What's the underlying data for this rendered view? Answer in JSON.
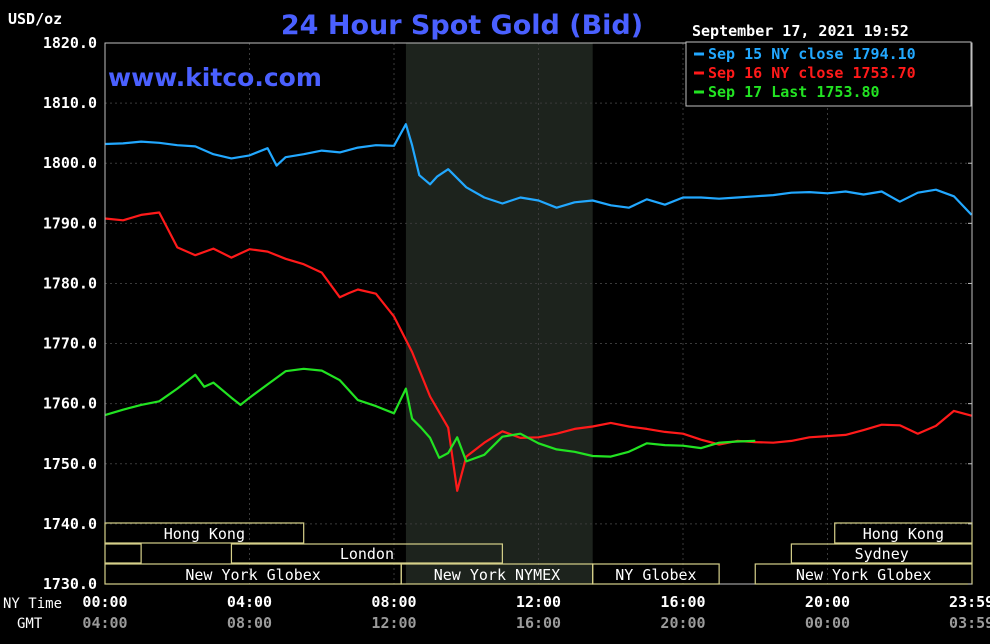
{
  "header": {
    "title": "24 Hour Spot Gold (Bid)",
    "unit_label": "USD/oz",
    "timestamp": "September 17, 2021 19:52",
    "watermark": "www.kitco.com"
  },
  "legend": [
    {
      "label": "Sep 15 NY close 1794.10",
      "color": "#22a8ff"
    },
    {
      "label": "Sep 16 NY close 1753.70",
      "color": "#ff1a1a"
    },
    {
      "label": "Sep 17 Last 1753.80",
      "color": "#22e322"
    }
  ],
  "axis": {
    "y_ticks": [
      "1820.0",
      "1810.0",
      "1800.0",
      "1790.0",
      "1780.0",
      "1770.0",
      "1760.0",
      "1750.0",
      "1740.0",
      "1730.0"
    ],
    "row_label_ny": "NY Time",
    "row_label_gmt": "GMT",
    "ny_ticks": [
      "00:00",
      "04:00",
      "08:00",
      "12:00",
      "16:00",
      "20:00",
      "23:59"
    ],
    "gmt_ticks": [
      "04:00",
      "08:00",
      "12:00",
      "16:00",
      "20:00",
      "00:00",
      "03:59"
    ]
  },
  "sessions": {
    "row1": [
      {
        "label": "Hong Kong",
        "start": 0.0,
        "end": 5.5
      },
      {
        "label": "Hong Kong",
        "start": 20.2,
        "end": 24.0
      }
    ],
    "row2": [
      {
        "label": "",
        "start": 0.0,
        "end": 1.0
      },
      {
        "label": "London",
        "start": 3.5,
        "end": 11.0
      },
      {
        "label": "Sydney",
        "start": 19.0,
        "end": 24.0
      }
    ],
    "row3": [
      {
        "label": "New York Globex",
        "start": 0.0,
        "end": 8.2
      },
      {
        "label": "New York NYMEX",
        "start": 8.2,
        "end": 13.5
      },
      {
        "label": "NY Globex",
        "start": 13.5,
        "end": 17.0
      },
      {
        "label": "New York Globex",
        "start": 18.0,
        "end": 24.0
      }
    ]
  },
  "chart_data": {
    "type": "line",
    "title": "24 Hour Spot Gold (Bid)",
    "ylabel": "USD/oz",
    "xlabel": "NY Time",
    "x_unit": "hours (NY time)",
    "xlim": [
      0,
      24
    ],
    "ylim": [
      1730,
      1820
    ],
    "grid": true,
    "shaded_region_hours": [
      8.33,
      13.5
    ],
    "legend_position": "top-right",
    "series": [
      {
        "name": "Sep 15 NY close 1794.10",
        "color": "#22a8ff",
        "x": [
          0,
          0.5,
          1,
          1.5,
          2,
          2.5,
          3,
          3.5,
          4,
          4.5,
          4.75,
          5,
          5.5,
          6,
          6.5,
          7,
          7.5,
          8,
          8.33,
          8.5,
          8.7,
          9,
          9.2,
          9.5,
          10,
          10.5,
          11,
          11.5,
          12,
          12.5,
          13,
          13.5,
          14,
          14.5,
          15,
          15.5,
          16,
          16.5,
          17,
          17.5,
          18,
          18.5,
          19,
          19.5,
          20,
          20.5,
          21,
          21.5,
          22,
          22.5,
          23,
          23.5,
          23.99
        ],
        "values": [
          1803.2,
          1803.3,
          1803.6,
          1803.4,
          1803.0,
          1802.8,
          1801.5,
          1800.8,
          1801.3,
          1802.5,
          1799.6,
          1801.0,
          1801.5,
          1802.1,
          1801.8,
          1802.6,
          1803.0,
          1802.9,
          1806.5,
          1803.0,
          1798.0,
          1796.5,
          1797.8,
          1799.0,
          1796.0,
          1794.3,
          1793.3,
          1794.3,
          1793.8,
          1792.6,
          1793.5,
          1793.8,
          1793.0,
          1792.6,
          1794.0,
          1793.1,
          1794.3,
          1794.3,
          1794.1,
          1794.3,
          1794.5,
          1794.7,
          1795.1,
          1795.2,
          1795.0,
          1795.3,
          1794.8,
          1795.3,
          1793.6,
          1795.1,
          1795.6,
          1794.5,
          1791.4
        ]
      },
      {
        "name": "Sep 16 NY close 1753.70",
        "color": "#ff1a1a",
        "x": [
          0,
          0.5,
          1,
          1.5,
          1.7,
          2,
          2.5,
          3,
          3.5,
          4,
          4.5,
          5,
          5.5,
          6,
          6.5,
          6.75,
          7,
          7.5,
          8,
          8.5,
          9,
          9.5,
          9.75,
          10,
          10.5,
          11,
          11.5,
          12,
          12.5,
          13,
          13.5,
          14,
          14.5,
          15,
          15.5,
          16,
          16.5,
          17,
          17.5,
          18,
          18.5,
          19,
          19.5,
          20,
          20.5,
          21,
          21.5,
          22,
          22.5,
          23,
          23.5,
          23.99
        ],
        "values": [
          1790.8,
          1790.5,
          1791.4,
          1791.8,
          1789.5,
          1786.0,
          1784.7,
          1785.8,
          1784.3,
          1785.7,
          1785.3,
          1784.1,
          1783.2,
          1781.8,
          1777.7,
          1778.4,
          1779.0,
          1778.3,
          1774.5,
          1768.6,
          1761.2,
          1756.0,
          1745.5,
          1751.2,
          1753.5,
          1755.4,
          1754.3,
          1754.4,
          1755.0,
          1755.8,
          1756.2,
          1756.8,
          1756.2,
          1755.8,
          1755.3,
          1755.0,
          1754.0,
          1753.2,
          1753.8,
          1753.6,
          1753.5,
          1753.8,
          1754.4,
          1754.6,
          1754.8,
          1755.6,
          1756.5,
          1756.4,
          1755.0,
          1756.3,
          1758.8,
          1758.0
        ]
      },
      {
        "name": "Sep 17 Last 1753.80",
        "color": "#22e322",
        "x": [
          0,
          0.5,
          1,
          1.5,
          2,
          2.5,
          2.75,
          3,
          3.5,
          3.75,
          4,
          4.5,
          5,
          5.5,
          6,
          6.5,
          7,
          7.5,
          8,
          8.33,
          8.5,
          8.75,
          9,
          9.25,
          9.5,
          9.75,
          10,
          10.5,
          11,
          11.5,
          12,
          12.5,
          13,
          13.5,
          14,
          14.5,
          15,
          15.5,
          16,
          16.5,
          17,
          17.5,
          18
        ],
        "values": [
          1758.1,
          1759.0,
          1759.8,
          1760.4,
          1762.5,
          1764.8,
          1762.8,
          1763.5,
          1761.0,
          1759.8,
          1761.0,
          1763.2,
          1765.4,
          1765.8,
          1765.5,
          1763.9,
          1760.6,
          1759.6,
          1758.4,
          1762.5,
          1757.5,
          1756.0,
          1754.3,
          1751.0,
          1751.8,
          1754.4,
          1750.4,
          1751.5,
          1754.5,
          1755.0,
          1753.4,
          1752.4,
          1752.0,
          1751.3,
          1751.2,
          1752.0,
          1753.4,
          1753.1,
          1753.0,
          1752.6,
          1753.5,
          1753.7,
          1753.8
        ]
      }
    ]
  }
}
